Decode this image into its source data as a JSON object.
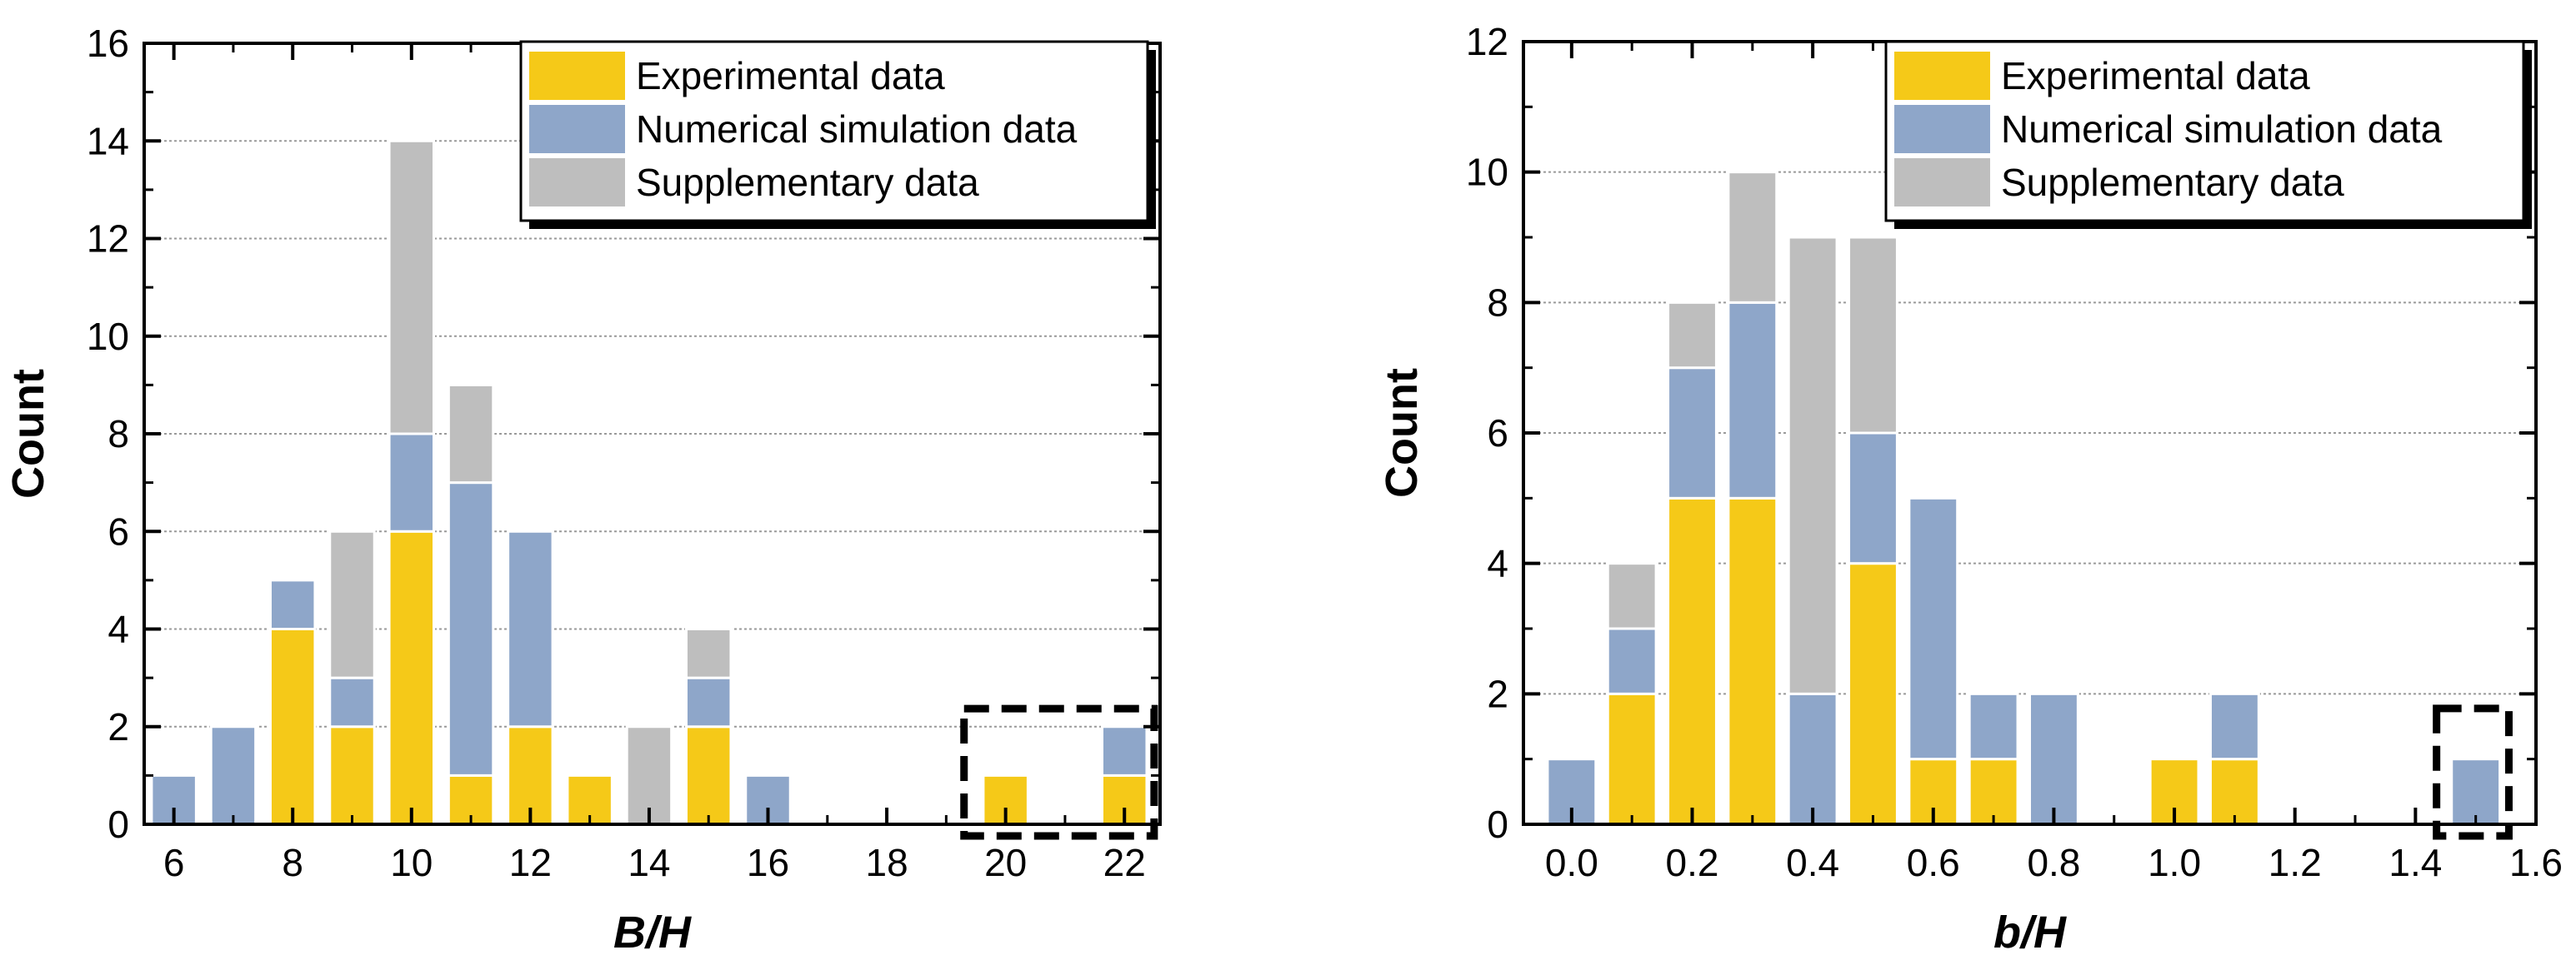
{
  "colors": {
    "experimental": "#F5C918",
    "numerical": "#8EA6C9",
    "supplementary": "#BEBEBE",
    "grid": "#9A9A9A"
  },
  "chart_data": [
    {
      "id": "left",
      "type": "bar",
      "stacked": true,
      "xlabel": "B/H",
      "ylabel": "Count",
      "xlim": [
        5.5,
        22.6
      ],
      "ylim": [
        0,
        16
      ],
      "xticks": [
        6,
        8,
        10,
        12,
        14,
        16,
        18,
        20,
        22
      ],
      "xtick_labels": [
        "6",
        "8",
        "10",
        "12",
        "14",
        "16",
        "18",
        "20",
        "22"
      ],
      "yticks": [
        0,
        2,
        4,
        6,
        8,
        10,
        12,
        14,
        16
      ],
      "ytick_labels": [
        "0",
        "2",
        "4",
        "6",
        "8",
        "10",
        "12",
        "14",
        "16"
      ],
      "bar_width": 0.75,
      "categories": [
        6,
        7,
        8,
        9,
        10,
        11,
        12,
        13,
        14,
        15,
        16,
        20,
        22
      ],
      "series": [
        {
          "name": "Experimental data",
          "key": "experimental",
          "values": [
            0,
            0,
            4,
            2,
            6,
            1,
            2,
            1,
            0,
            2,
            0,
            1,
            1
          ]
        },
        {
          "name": "Numerical simulation data",
          "key": "numerical",
          "values": [
            1,
            2,
            1,
            1,
            2,
            6,
            4,
            0,
            0,
            1,
            1,
            0,
            1
          ]
        },
        {
          "name": "Supplementary data",
          "key": "supplementary",
          "values": [
            0,
            0,
            0,
            3,
            6,
            2,
            0,
            0,
            2,
            1,
            0,
            0,
            0
          ]
        }
      ],
      "legend": [
        "Experimental data",
        "Numerical simulation data",
        "Supplementary data"
      ],
      "legend_position": "top-right",
      "highlight_range": [
        19.3,
        22.5
      ],
      "grid": "horizontal"
    },
    {
      "id": "right",
      "type": "bar",
      "stacked": true,
      "xlabel": "b/H",
      "ylabel": "Count",
      "xlim": [
        -0.08,
        1.6
      ],
      "ylim": [
        0,
        12
      ],
      "xticks": [
        0.0,
        0.2,
        0.4,
        0.6,
        0.8,
        1.0,
        1.2,
        1.4,
        1.6
      ],
      "xtick_labels": [
        "0.0",
        "0.2",
        "0.4",
        "0.6",
        "0.8",
        "1.0",
        "1.2",
        "1.4",
        "1.6"
      ],
      "yticks": [
        0,
        2,
        4,
        6,
        8,
        10,
        12
      ],
      "ytick_labels": [
        "0",
        "2",
        "4",
        "6",
        "8",
        "10",
        "12"
      ],
      "bar_width": 0.08,
      "categories": [
        0.0,
        0.1,
        0.2,
        0.3,
        0.4,
        0.5,
        0.6,
        0.7,
        0.8,
        1.0,
        1.1,
        1.5
      ],
      "series": [
        {
          "name": "Experimental data",
          "key": "experimental",
          "values": [
            0,
            2,
            5,
            5,
            0,
            4,
            1,
            1,
            0,
            1,
            1,
            0
          ]
        },
        {
          "name": "Numerical simulation data",
          "key": "numerical",
          "values": [
            1,
            1,
            2,
            3,
            2,
            2,
            4,
            1,
            2,
            0,
            1,
            1
          ]
        },
        {
          "name": "Supplementary data",
          "key": "supplementary",
          "values": [
            0,
            1,
            1,
            2,
            7,
            3,
            0,
            0,
            0,
            0,
            0,
            0
          ]
        }
      ],
      "legend": [
        "Experimental data",
        "Numerical simulation data",
        "Supplementary data"
      ],
      "legend_position": "top-right",
      "highlight_range": [
        1.435,
        1.555
      ],
      "grid": "horizontal"
    }
  ]
}
